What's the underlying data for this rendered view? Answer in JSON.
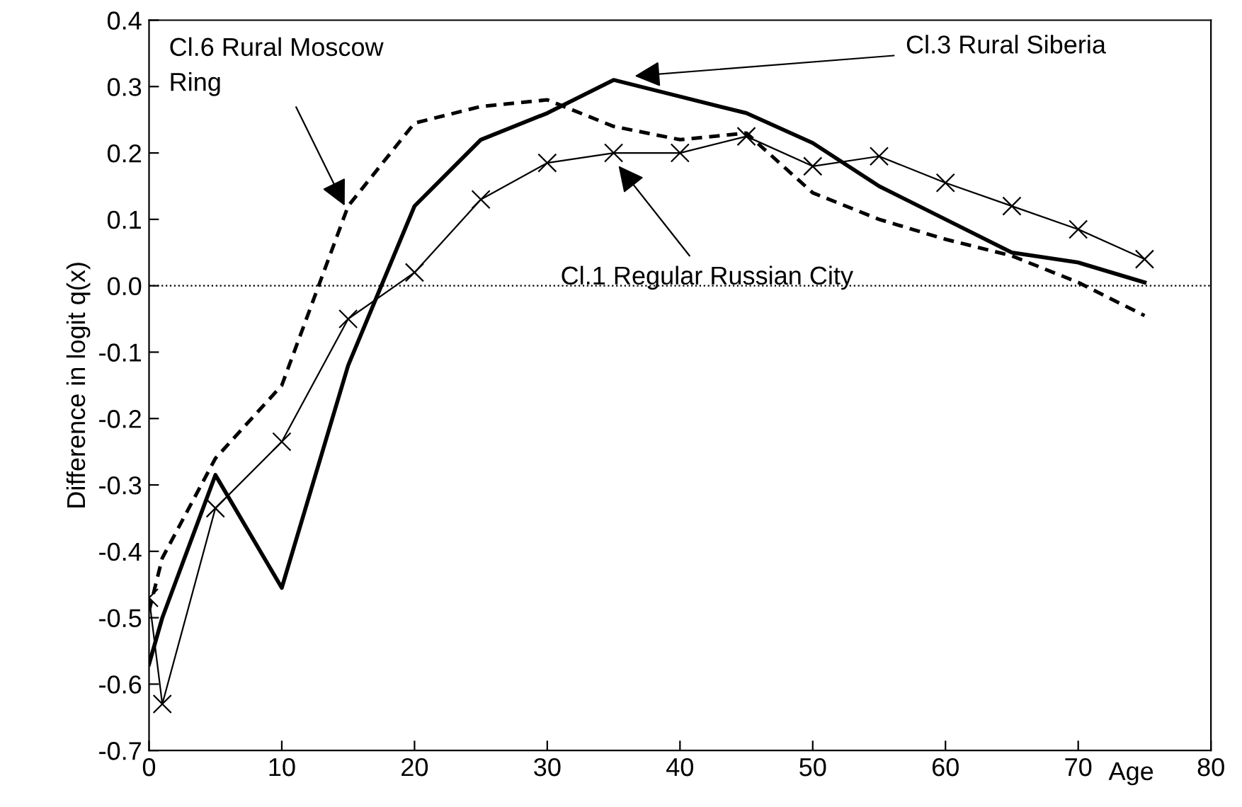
{
  "chart_data": {
    "type": "line",
    "ylabel": "Difference in logit q(x)",
    "xlabel": "Age",
    "x": [
      0,
      1,
      5,
      10,
      15,
      20,
      25,
      30,
      35,
      40,
      45,
      50,
      55,
      60,
      65,
      70,
      75
    ],
    "series": [
      {
        "name": "Cl.1 Regular Russian City",
        "color": "#000000",
        "marker": "cross",
        "line_style": "solid",
        "values": [
          -0.47,
          -0.63,
          -0.335,
          -0.235,
          -0.05,
          0.02,
          0.13,
          0.185,
          0.2,
          0.2,
          0.225,
          0.18,
          0.195,
          0.155,
          0.12,
          0.085,
          0.04
        ]
      },
      {
        "name": "Cl.3 Rural Siberia",
        "color": "#000000",
        "line_style": "solid",
        "values": [
          -0.57,
          -0.5,
          -0.285,
          -0.455,
          -0.12,
          0.12,
          0.22,
          0.26,
          0.31,
          0.285,
          0.26,
          0.215,
          0.15,
          0.1,
          0.05,
          0.035,
          0.005
        ]
      },
      {
        "name": "Cl.6 Rural Moscow\nRing",
        "color": "#000000",
        "line_style": "dashed",
        "values": [
          -0.49,
          -0.41,
          -0.26,
          -0.15,
          0.12,
          0.245,
          0.27,
          0.28,
          0.24,
          0.22,
          0.23,
          0.14,
          0.1,
          0.07,
          0.045,
          0.005,
          -0.045
        ]
      }
    ],
    "xlim": [
      0,
      80
    ],
    "ylim": [
      -0.7,
      0.4
    ],
    "xticks": [
      0,
      10,
      20,
      30,
      40,
      50,
      60,
      70,
      80
    ],
    "yticks": [
      -0.7,
      -0.6,
      -0.5,
      -0.4,
      -0.3,
      -0.2,
      -0.1,
      {
        "value": 0,
        "label": "0.0"
      },
      0.1,
      0.2,
      0.3,
      0.4
    ],
    "ref_lines": [
      {
        "axis": "y",
        "value": 0,
        "line_style": "dotted",
        "color": "#000000"
      }
    ],
    "grid": false,
    "legend": false
  }
}
